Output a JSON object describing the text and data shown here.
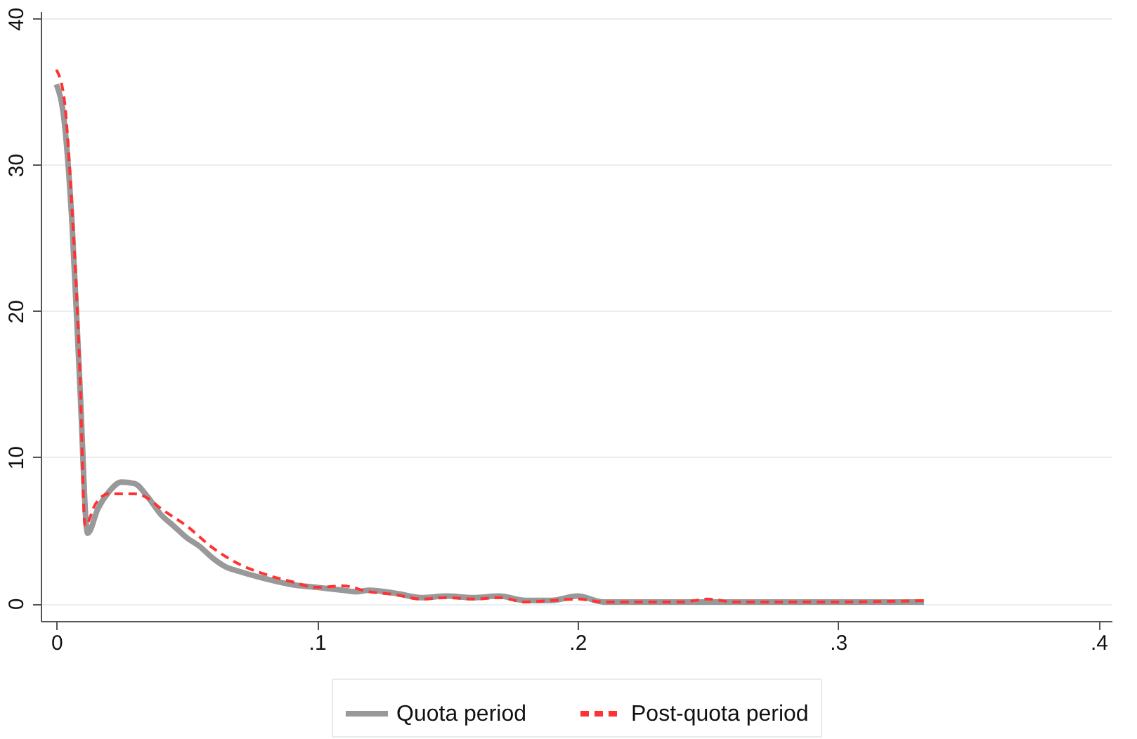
{
  "chart_data": {
    "type": "line",
    "legend": "bottom",
    "grid": "y",
    "xlim": [
      -0.006,
      0.405
    ],
    "ylim": [
      -1.2,
      40.5
    ],
    "xticks": [
      {
        "value": 0,
        "label": "0"
      },
      {
        "value": 0.1,
        "label": ".1"
      },
      {
        "value": 0.2,
        "label": ".2"
      },
      {
        "value": 0.3,
        "label": ".3"
      },
      {
        "value": 0.4,
        "label": ".4"
      }
    ],
    "yticks": [
      0,
      10,
      20,
      30,
      40
    ],
    "series": [
      {
        "name": "Quota period",
        "color": "#999999",
        "line_style": "solid",
        "x": [
          0,
          0.003,
          0.006,
          0.009,
          0.012,
          0.016,
          0.02,
          0.025,
          0.03,
          0.035,
          0.04,
          0.045,
          0.05,
          0.055,
          0.06,
          0.065,
          0.07,
          0.08,
          0.09,
          0.1,
          0.11,
          0.115,
          0.12,
          0.13,
          0.14,
          0.15,
          0.16,
          0.17,
          0.18,
          0.19,
          0.2,
          0.21,
          0.22,
          0.25,
          0.28,
          0.3,
          0.333
        ],
        "values": [
          35.5,
          33,
          26,
          15,
          4.8,
          6.5,
          7.6,
          8.3,
          8.2,
          7.3,
          6.1,
          5.3,
          4.5,
          3.9,
          3.1,
          2.5,
          2.2,
          1.7,
          1.3,
          1.1,
          0.9,
          0.8,
          0.9,
          0.7,
          0.4,
          0.5,
          0.4,
          0.5,
          0.2,
          0.2,
          0.5,
          0.1,
          0.1,
          0.1,
          0.1,
          0.1,
          0.1
        ]
      },
      {
        "name": "Post-quota period",
        "color": "#ff3333",
        "line_style": "dashed",
        "x": [
          0,
          0.003,
          0.006,
          0.009,
          0.011,
          0.015,
          0.02,
          0.03,
          0.035,
          0.04,
          0.05,
          0.06,
          0.07,
          0.08,
          0.09,
          0.1,
          0.11,
          0.12,
          0.13,
          0.14,
          0.15,
          0.16,
          0.17,
          0.18,
          0.19,
          0.2,
          0.21,
          0.24,
          0.25,
          0.26,
          0.3,
          0.333
        ],
        "values": [
          36.5,
          34.5,
          27,
          16,
          5.3,
          6.8,
          7.5,
          7.5,
          7.2,
          6.5,
          5.3,
          3.8,
          2.7,
          2.0,
          1.5,
          1.1,
          1.2,
          0.8,
          0.6,
          0.3,
          0.4,
          0.3,
          0.4,
          0.1,
          0.2,
          0.3,
          0.1,
          0.1,
          0.3,
          0.1,
          0.1,
          0.2
        ]
      }
    ]
  }
}
